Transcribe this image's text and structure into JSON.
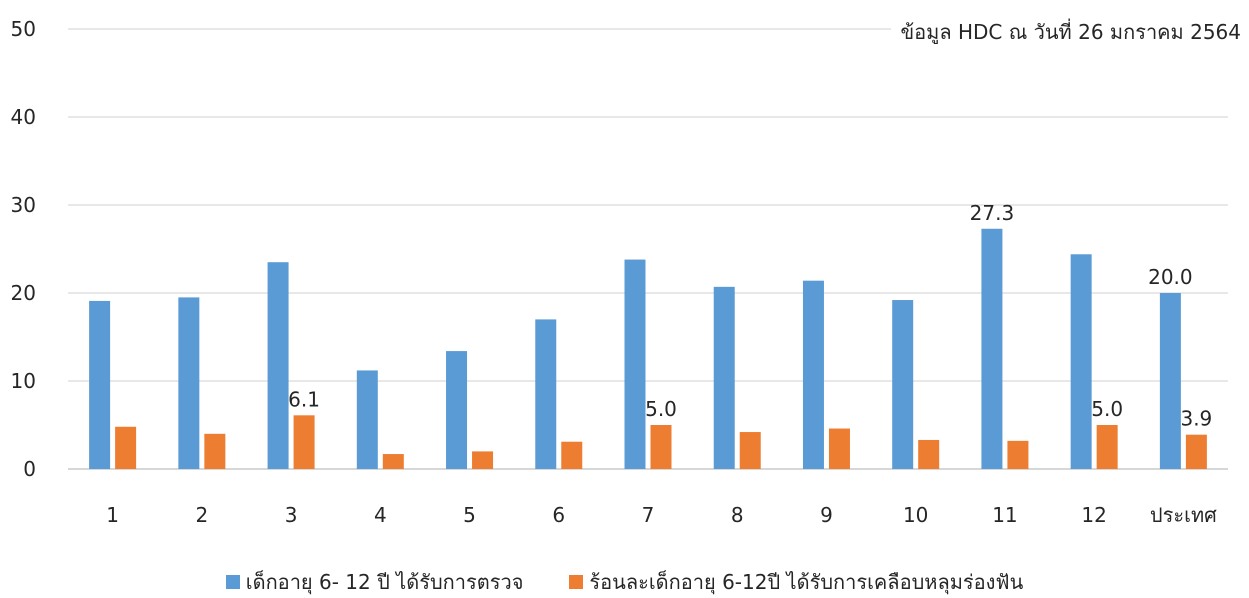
{
  "chart_data": {
    "type": "bar",
    "note": "ข้อมูล HDC ณ วันที่ 26 มกราคม 2564",
    "categories": [
      "1",
      "2",
      "3",
      "4",
      "5",
      "6",
      "7",
      "8",
      "9",
      "10",
      "11",
      "12",
      "ประเทศ"
    ],
    "ylim": [
      0,
      50
    ],
    "yticks": [
      0,
      10,
      20,
      30,
      40,
      50
    ],
    "grid": true,
    "legend_position": "bottom",
    "series": [
      {
        "name": "เด็กอายุ 6- 12 ปี ได้รับการตรวจ",
        "color": "#5B9BD5",
        "values": [
          19.1,
          19.5,
          23.5,
          11.2,
          13.4,
          17.0,
          23.8,
          20.7,
          21.4,
          19.2,
          27.3,
          24.4,
          20.0
        ],
        "labels": [
          "",
          "",
          "",
          "",
          "",
          "",
          "",
          "",
          "",
          "",
          "27.3",
          "",
          "20.0"
        ]
      },
      {
        "name": "ร้อนละเด็กอายุ 6-12ปี ได้รับการเคลือบหลุมร่องฟัน",
        "color": "#ED7D31",
        "values": [
          4.8,
          4.0,
          6.1,
          1.7,
          2.0,
          3.1,
          5.0,
          4.2,
          4.6,
          3.3,
          3.2,
          5.0,
          3.9
        ],
        "labels": [
          "",
          "",
          "6.1",
          "",
          "",
          "",
          "5.0",
          "",
          "",
          "",
          "",
          "5.0",
          "3.9"
        ]
      }
    ]
  }
}
